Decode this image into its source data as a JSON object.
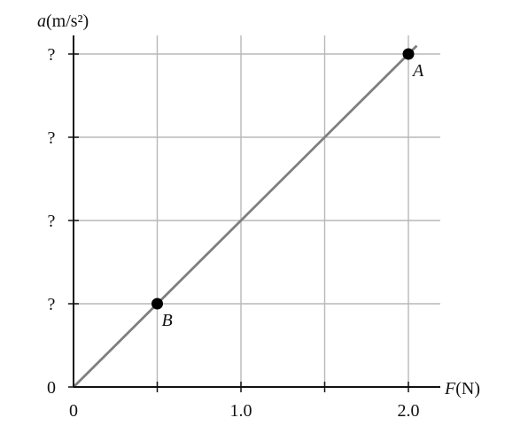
{
  "chart_data": {
    "type": "line",
    "x_axis": {
      "var": "F",
      "unit": "(N)",
      "ticks": [
        0,
        1.0,
        2.0
      ],
      "tick_labels": [
        "0",
        "1.0",
        "2.0"
      ],
      "range": [
        0,
        2.0
      ]
    },
    "y_axis": {
      "var": "a",
      "unit": "(m/s²)",
      "ticks": [
        0,
        1,
        2,
        3,
        4
      ],
      "tick_labels": [
        "0",
        "?",
        "?",
        "?",
        "?"
      ],
      "range": [
        0,
        4
      ]
    },
    "grid": true,
    "series": [
      {
        "x": [
          0,
          2.0
        ],
        "y": [
          0,
          4
        ],
        "color": "#7f7f7f"
      }
    ],
    "points": [
      {
        "label": "A",
        "x": 2.0,
        "y": 4
      },
      {
        "label": "B",
        "x": 0.5,
        "y": 1
      }
    ]
  }
}
